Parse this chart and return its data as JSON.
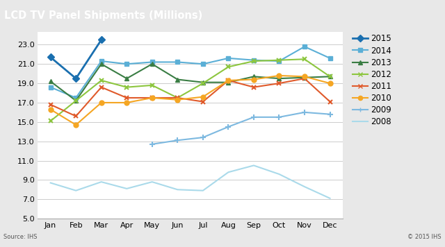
{
  "title": "LCD TV Panel Shipments (Millions)",
  "source_left": "Source: IHS",
  "source_right": "© 2015 IHS",
  "months": [
    "Jan",
    "Feb",
    "Mar",
    "Apr",
    "May",
    "Jun",
    "Jul",
    "Aug",
    "Sep",
    "Oct",
    "Nov",
    "Dec"
  ],
  "series": [
    {
      "year": "2015",
      "values": [
        21.7,
        19.5,
        23.5,
        null,
        null,
        null,
        null,
        null,
        null,
        null,
        null,
        null
      ],
      "color": "#1a6faf",
      "marker": "D",
      "lw": 2.0
    },
    {
      "year": "2014",
      "values": [
        18.6,
        17.5,
        21.3,
        21.0,
        21.2,
        21.2,
        21.0,
        21.6,
        21.4,
        21.3,
        22.8,
        21.6
      ],
      "color": "#5bafd6",
      "marker": "s",
      "lw": 1.5
    },
    {
      "year": "2013",
      "values": [
        19.2,
        17.2,
        21.0,
        19.5,
        21.0,
        19.4,
        19.1,
        19.1,
        19.7,
        19.5,
        19.6,
        19.7
      ],
      "color": "#3a7d44",
      "marker": "^",
      "lw": 1.5
    },
    {
      "year": "2012",
      "values": [
        15.1,
        17.2,
        19.3,
        18.6,
        18.8,
        17.5,
        19.0,
        20.7,
        21.3,
        21.4,
        21.5,
        19.7
      ],
      "color": "#8dc63f",
      "marker": "x",
      "lw": 1.5
    },
    {
      "year": "2011",
      "values": [
        16.8,
        15.6,
        18.6,
        17.5,
        17.5,
        17.5,
        17.1,
        19.3,
        18.6,
        19.0,
        19.5,
        17.1
      ],
      "color": "#e05a2b",
      "marker": "x",
      "lw": 1.5
    },
    {
      "year": "2010",
      "values": [
        16.3,
        14.7,
        17.0,
        17.0,
        17.5,
        17.3,
        17.6,
        19.3,
        19.4,
        19.8,
        19.7,
        19.0
      ],
      "color": "#f5a623",
      "marker": "o",
      "lw": 1.5
    },
    {
      "year": "2009",
      "values": [
        null,
        null,
        null,
        null,
        12.7,
        13.1,
        13.4,
        14.5,
        15.5,
        15.5,
        16.0,
        15.8
      ],
      "color": "#7db9e0",
      "marker": "+",
      "lw": 1.5
    },
    {
      "year": "2008",
      "values": [
        8.7,
        7.9,
        8.8,
        8.1,
        8.8,
        8.0,
        7.9,
        9.8,
        10.5,
        9.6,
        8.3,
        7.1
      ],
      "color": "#aadaea",
      "marker": null,
      "lw": 1.5
    }
  ],
  "ylim": [
    5.0,
    24.3
  ],
  "yticks": [
    5.0,
    7.0,
    9.0,
    11.0,
    13.0,
    15.0,
    17.0,
    19.0,
    21.0,
    23.0
  ],
  "title_bg_color": "#7f8c8d",
  "plot_bg_color": "#ffffff",
  "fig_bg_color": "#e8e8e8",
  "grid_color": "#cccccc",
  "title_fontsize": 10.5,
  "tick_fontsize": 8,
  "legend_fontsize": 8.5
}
